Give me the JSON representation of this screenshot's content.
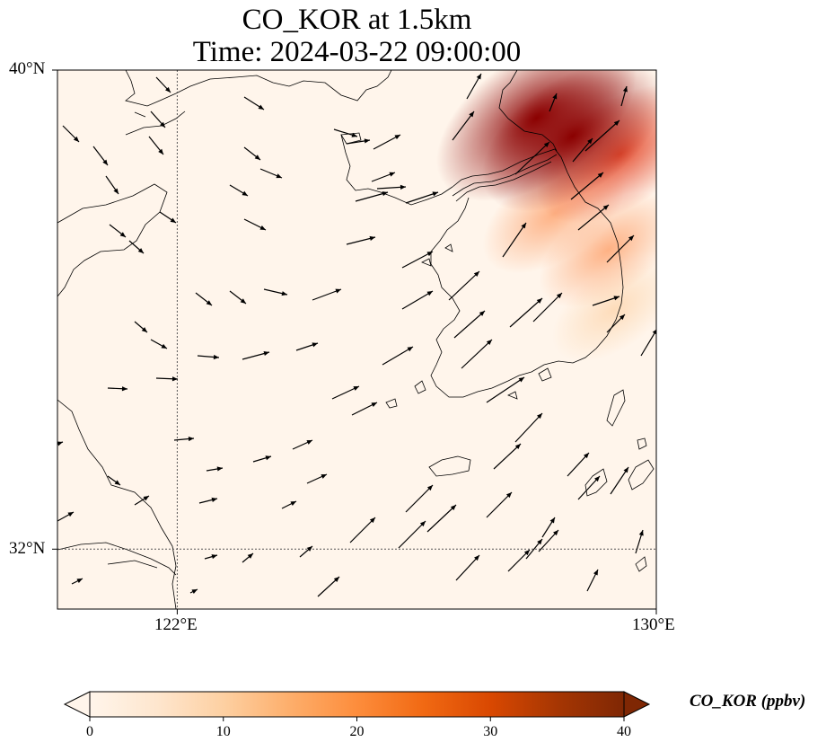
{
  "title": {
    "line1": "CO_KOR at 1.5km",
    "line2": "Time: 2024-03-22 09:00:00"
  },
  "axes": {
    "lat_ticks": [
      "40°N",
      "32°N"
    ],
    "lon_ticks": [
      "122°E",
      "130°E"
    ],
    "lon_range": [
      120,
      130
    ],
    "lat_range": [
      31,
      40
    ],
    "gridlines": "dotted, at 122°E and 32°N"
  },
  "colorbar": {
    "label": "CO_KOR (ppbv)",
    "ticks": [
      "0",
      "10",
      "20",
      "30",
      "40"
    ],
    "range": [
      0,
      40
    ],
    "extend": "both",
    "colormap": [
      "#fff5eb",
      "#fee6ce",
      "#fdd0a2",
      "#fdae6b",
      "#fd8d3c",
      "#f16913",
      "#d94801",
      "#a63603",
      "#7f2704"
    ]
  },
  "chart_data": {
    "type": "heatmap",
    "variable": "CO_KOR",
    "units": "ppbv",
    "overlay": "wind vectors (predominantly westerly/southwesterly)",
    "plumes": [
      {
        "lon": 128.0,
        "lat": 39.2,
        "value": 38
      },
      {
        "lon": 128.6,
        "lat": 38.9,
        "value": 30
      },
      {
        "lon": 129.4,
        "lat": 38.6,
        "value": 24
      },
      {
        "lon": 128.3,
        "lat": 37.6,
        "value": 14
      },
      {
        "lon": 129.2,
        "lat": 37.0,
        "value": 12
      },
      {
        "lon": 129.3,
        "lat": 36.0,
        "value": 6
      }
    ]
  }
}
